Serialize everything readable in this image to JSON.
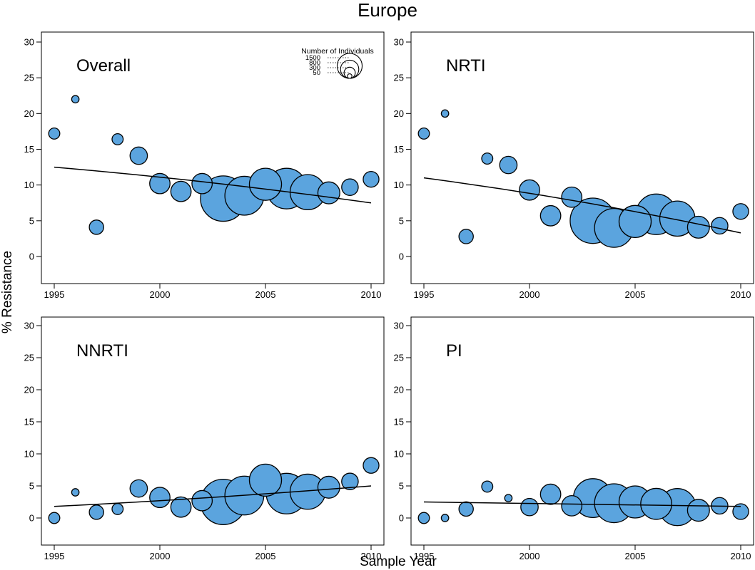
{
  "title": "Europe",
  "xlabel": "Sample Year",
  "ylabel": "% Resistance",
  "colors": {
    "bubble_fill": "#5ba4de",
    "stroke": "#000000",
    "trend": "#000000"
  },
  "legend": {
    "title": "Number of Individuals",
    "sizes": [
      1500,
      800,
      300,
      50
    ],
    "placement": "top-right of Overall panel"
  },
  "chart_data": [
    {
      "type": "scatter",
      "title": "Overall",
      "x": [
        1995,
        1996,
        1997,
        1998,
        1999,
        2000,
        2001,
        2002,
        2003,
        2004,
        2005,
        2006,
        2007,
        2008,
        2009,
        2010
      ],
      "y": [
        17.2,
        22.0,
        4.1,
        16.4,
        14.1,
        10.2,
        9.1,
        10.2,
        8.1,
        8.5,
        10.1,
        9.5,
        9.0,
        8.9,
        9.7,
        10.8
      ],
      "n": [
        90,
        40,
        150,
        90,
        220,
        300,
        300,
        300,
        1500,
        1100,
        750,
        1200,
        900,
        350,
        200,
        180
      ],
      "trend": {
        "from": [
          1995,
          12.5
        ],
        "to": [
          2010,
          7.5
        ],
        "shape": "curve"
      },
      "xlim": [
        1995,
        2010
      ],
      "ylim": [
        0,
        30
      ],
      "xticks": [
        1995,
        2000,
        2005,
        2010
      ],
      "yticks": [
        0,
        5,
        10,
        15,
        20,
        25,
        30
      ]
    },
    {
      "type": "scatter",
      "title": "NRTI",
      "x": [
        1995,
        1996,
        1997,
        1998,
        1999,
        2000,
        2001,
        2002,
        2003,
        2004,
        2005,
        2006,
        2007,
        2008,
        2009,
        2010
      ],
      "y": [
        17.2,
        20.0,
        2.8,
        13.7,
        12.8,
        9.3,
        5.7,
        8.3,
        5.0,
        4.0,
        4.9,
        5.9,
        5.3,
        4.1,
        4.3,
        6.3
      ],
      "n": [
        90,
        40,
        150,
        90,
        220,
        300,
        300,
        300,
        1500,
        1100,
        750,
        1200,
        900,
        350,
        200,
        180
      ],
      "trend": {
        "from": [
          1995,
          11.0
        ],
        "to": [
          2010,
          3.3
        ],
        "shape": "curve"
      },
      "xlim": [
        1995,
        2010
      ],
      "ylim": [
        0,
        30
      ],
      "xticks": [
        1995,
        2000,
        2005,
        2010
      ],
      "yticks": [
        0,
        5,
        10,
        15,
        20,
        25,
        30
      ]
    },
    {
      "type": "scatter",
      "title": "NNRTI",
      "x": [
        1995,
        1996,
        1997,
        1998,
        1999,
        2000,
        2001,
        2002,
        2003,
        2004,
        2005,
        2006,
        2007,
        2008,
        2009,
        2010
      ],
      "y": [
        0.0,
        4.0,
        0.9,
        1.4,
        4.6,
        3.2,
        1.7,
        2.7,
        2.5,
        3.5,
        5.9,
        3.8,
        4.1,
        4.8,
        5.7,
        8.2
      ],
      "n": [
        90,
        40,
        150,
        90,
        220,
        300,
        300,
        300,
        1500,
        1100,
        750,
        1200,
        900,
        350,
        200,
        180
      ],
      "trend": {
        "from": [
          1995,
          1.8
        ],
        "to": [
          2010,
          5.0
        ],
        "shape": "curve"
      },
      "xlim": [
        1995,
        2010
      ],
      "ylim": [
        0,
        30
      ],
      "xticks": [
        1995,
        2000,
        2005,
        2010
      ],
      "yticks": [
        0,
        5,
        10,
        15,
        20,
        25,
        30
      ]
    },
    {
      "type": "scatter",
      "title": "PI",
      "x": [
        1995,
        1996,
        1997,
        1998,
        1999,
        2000,
        2001,
        2002,
        2003,
        2004,
        2005,
        2006,
        2007,
        2008,
        2009,
        2010
      ],
      "y": [
        0.0,
        0.0,
        1.4,
        4.9,
        3.1,
        1.7,
        3.7,
        1.9,
        3.1,
        2.3,
        2.5,
        2.2,
        1.7,
        1.2,
        1.9,
        1.0
      ],
      "n": [
        90,
        40,
        150,
        90,
        40,
        220,
        300,
        300,
        1100,
        1100,
        750,
        700,
        1000,
        350,
        200,
        180
      ],
      "trend": {
        "from": [
          1995,
          2.5
        ],
        "to": [
          2010,
          1.8
        ],
        "shape": "curve"
      },
      "xlim": [
        1995,
        2010
      ],
      "ylim": [
        0,
        30
      ],
      "xticks": [
        1995,
        2000,
        2005,
        2010
      ],
      "yticks": [
        0,
        5,
        10,
        15,
        20,
        25,
        30
      ]
    }
  ]
}
